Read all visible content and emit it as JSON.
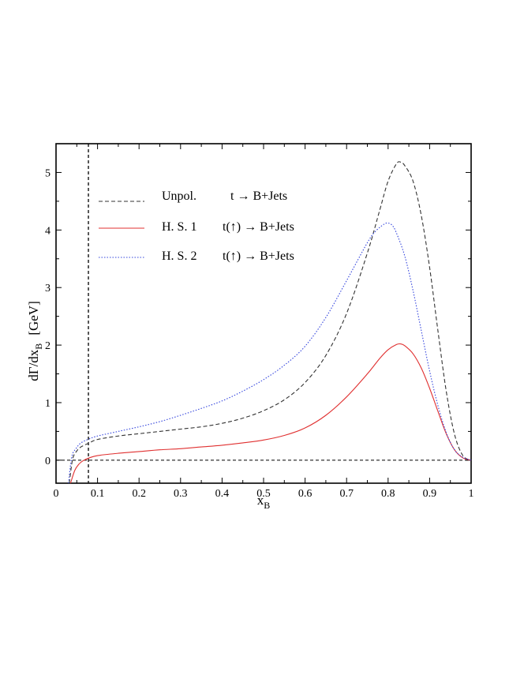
{
  "chart_data": {
    "type": "line",
    "xlabel": "x",
    "xlabel_sub": "B",
    "ylabel": "dΓ/dx",
    "ylabel_sub": "B",
    "ylabel_unit": "[GeV]",
    "xlim": [
      0,
      1
    ],
    "ylim": [
      -0.4,
      5.5
    ],
    "xticks": [
      "0",
      "0.1",
      "0.2",
      "0.3",
      "0.4",
      "0.5",
      "0.6",
      "0.7",
      "0.8",
      "0.9",
      "1"
    ],
    "yticks": [
      "0",
      "1",
      "2",
      "3",
      "4",
      "5"
    ],
    "grid": false,
    "legend_position": "upper-left",
    "reference_lines": {
      "horizontal_y": 0,
      "vertical_x": 0.078
    },
    "series": [
      {
        "name": "Unpol.",
        "process": "t → B+Jets",
        "color": "#333333",
        "style": "dashed",
        "x": [
          0.032,
          0.04,
          0.05,
          0.06,
          0.08,
          0.1,
          0.15,
          0.2,
          0.25,
          0.3,
          0.35,
          0.4,
          0.45,
          0.5,
          0.55,
          0.6,
          0.65,
          0.7,
          0.75,
          0.78,
          0.8,
          0.82,
          0.83,
          0.84,
          0.86,
          0.88,
          0.9,
          0.92,
          0.94,
          0.96,
          0.98,
          1.0
        ],
        "y": [
          -0.4,
          0.02,
          0.16,
          0.23,
          0.3,
          0.36,
          0.42,
          0.46,
          0.5,
          0.54,
          0.58,
          0.64,
          0.73,
          0.86,
          1.05,
          1.35,
          1.82,
          2.55,
          3.6,
          4.35,
          4.85,
          5.15,
          5.18,
          5.12,
          4.85,
          4.25,
          3.35,
          2.25,
          1.2,
          0.45,
          0.08,
          0.0
        ]
      },
      {
        "name": "H. S. 1",
        "process": "t(↑) → B+Jets",
        "color": "#e03030",
        "style": "solid",
        "x": [
          0.035,
          0.045,
          0.055,
          0.065,
          0.08,
          0.1,
          0.15,
          0.2,
          0.25,
          0.3,
          0.35,
          0.4,
          0.45,
          0.5,
          0.55,
          0.6,
          0.65,
          0.7,
          0.75,
          0.78,
          0.8,
          0.82,
          0.83,
          0.84,
          0.86,
          0.88,
          0.9,
          0.92,
          0.94,
          0.96,
          0.98,
          1.0
        ],
        "y": [
          -0.4,
          -0.18,
          -0.07,
          -0.01,
          0.04,
          0.08,
          0.12,
          0.15,
          0.18,
          0.2,
          0.23,
          0.26,
          0.3,
          0.35,
          0.43,
          0.56,
          0.78,
          1.1,
          1.5,
          1.77,
          1.92,
          2.01,
          2.02,
          1.99,
          1.85,
          1.6,
          1.25,
          0.85,
          0.46,
          0.18,
          0.04,
          0.0
        ]
      },
      {
        "name": "H. S. 2",
        "process": "t(↑) → B+Jets",
        "color": "#3344dd",
        "style": "dotted",
        "x": [
          0.03,
          0.038,
          0.048,
          0.06,
          0.08,
          0.1,
          0.15,
          0.2,
          0.25,
          0.3,
          0.35,
          0.4,
          0.45,
          0.5,
          0.55,
          0.6,
          0.65,
          0.7,
          0.75,
          0.77,
          0.79,
          0.8,
          0.81,
          0.82,
          0.84,
          0.86,
          0.88,
          0.9,
          0.92,
          0.94,
          0.96,
          0.98,
          1.0
        ],
        "y": [
          -0.4,
          0.06,
          0.2,
          0.3,
          0.37,
          0.42,
          0.5,
          0.58,
          0.67,
          0.78,
          0.9,
          1.03,
          1.2,
          1.4,
          1.65,
          1.98,
          2.48,
          3.12,
          3.78,
          3.98,
          4.1,
          4.12,
          4.08,
          3.95,
          3.55,
          2.95,
          2.25,
          1.55,
          0.95,
          0.48,
          0.18,
          0.05,
          0.0
        ]
      }
    ]
  }
}
